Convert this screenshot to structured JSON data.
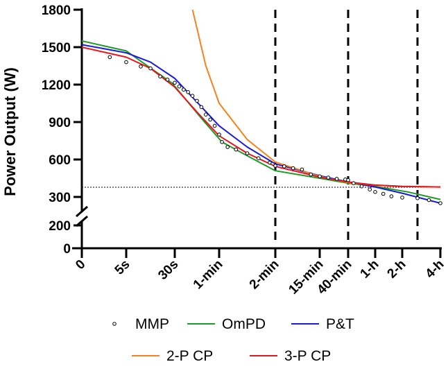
{
  "chart_data": {
    "type": "line",
    "title": "",
    "xlabel": "",
    "ylabel": "Power Output (W)",
    "x_tick_labels": [
      "0",
      "5s",
      "30s",
      "1-min",
      "2-min",
      "15-min",
      "40-min",
      "1-h",
      "2-h",
      "4-h"
    ],
    "y_ticks_upper": [
      300,
      600,
      900,
      1200,
      1500,
      1800
    ],
    "y_ticks_lower": [
      0,
      200
    ],
    "ylim": [
      0,
      1800
    ],
    "axis_break": [
      200,
      300
    ],
    "reference_line_y": 378,
    "vertical_dashed_at_index": [
      4,
      6,
      8.4
    ],
    "legend_position": "bottom",
    "series": [
      {
        "name": "MMP",
        "color": "#000000",
        "style": "open-circle",
        "points": [
          [
            0.63,
            1420
          ],
          [
            1,
            1380
          ],
          [
            1.3,
            1345
          ],
          [
            1.5,
            1330
          ],
          [
            1.7,
            1265
          ],
          [
            1.85,
            1240
          ],
          [
            2,
            1215
          ],
          [
            2.1,
            1185
          ],
          [
            2.2,
            1160
          ],
          [
            2.3,
            1140
          ],
          [
            2.4,
            1110
          ],
          [
            2.5,
            1070
          ],
          [
            2.6,
            1020
          ],
          [
            2.7,
            960
          ],
          [
            2.8,
            920
          ],
          [
            2.9,
            870
          ],
          [
            3,
            800
          ],
          [
            3.05,
            740
          ],
          [
            3.15,
            700
          ],
          [
            3.3,
            680
          ],
          [
            3.5,
            650
          ],
          [
            3.7,
            610
          ],
          [
            3.9,
            575
          ],
          [
            4,
            550
          ],
          [
            4.2,
            545
          ],
          [
            4.4,
            530
          ],
          [
            4.6,
            520
          ],
          [
            4.8,
            480
          ],
          [
            5,
            465
          ],
          [
            5.3,
            455
          ],
          [
            5.6,
            445
          ],
          [
            5.9,
            440
          ],
          [
            6,
            435
          ],
          [
            6.2,
            410
          ],
          [
            6.5,
            385
          ],
          [
            6.8,
            360
          ],
          [
            7,
            340
          ],
          [
            7.3,
            325
          ],
          [
            7.6,
            305
          ],
          [
            8,
            295
          ],
          [
            8.4,
            290
          ],
          [
            8.7,
            275
          ],
          [
            9,
            250
          ]
        ]
      },
      {
        "name": "OmPD",
        "color": "#1e9a2a",
        "points": [
          [
            0,
            1550
          ],
          [
            1,
            1470
          ],
          [
            1.95,
            1210
          ],
          [
            2.6,
            930
          ],
          [
            3.05,
            740
          ],
          [
            3.5,
            630
          ],
          [
            4,
            510
          ],
          [
            5,
            450
          ],
          [
            6,
            410
          ],
          [
            7,
            385
          ],
          [
            8.15,
            340
          ],
          [
            9,
            280
          ]
        ]
      },
      {
        "name": "P&T",
        "color": "#1a1adb",
        "points": [
          [
            0,
            1520
          ],
          [
            1,
            1455
          ],
          [
            1.5,
            1380
          ],
          [
            2,
            1250
          ],
          [
            2.5,
            1060
          ],
          [
            3,
            870
          ],
          [
            3.5,
            700
          ],
          [
            4,
            565
          ],
          [
            5,
            470
          ],
          [
            6,
            420
          ],
          [
            7,
            380
          ],
          [
            8,
            330
          ],
          [
            9,
            250
          ]
        ]
      },
      {
        "name": "2-P CP",
        "color": "#f5821f",
        "points": [
          [
            2.4,
            1800
          ],
          [
            2.7,
            1350
          ],
          [
            3,
            1050
          ],
          [
            3.5,
            760
          ],
          [
            4,
            580
          ],
          [
            5,
            465
          ],
          [
            6,
            415
          ],
          [
            7,
            395
          ],
          [
            8,
            385
          ],
          [
            9,
            380
          ]
        ]
      },
      {
        "name": "3-P CP",
        "color": "#e8141c",
        "points": [
          [
            0,
            1500
          ],
          [
            1,
            1420
          ],
          [
            1.5,
            1330
          ],
          [
            2,
            1180
          ],
          [
            2.5,
            980
          ],
          [
            3,
            790
          ],
          [
            3.5,
            650
          ],
          [
            4,
            545
          ],
          [
            5,
            460
          ],
          [
            6,
            420
          ],
          [
            7,
            395
          ],
          [
            8,
            385
          ],
          [
            9,
            380
          ]
        ]
      }
    ]
  }
}
